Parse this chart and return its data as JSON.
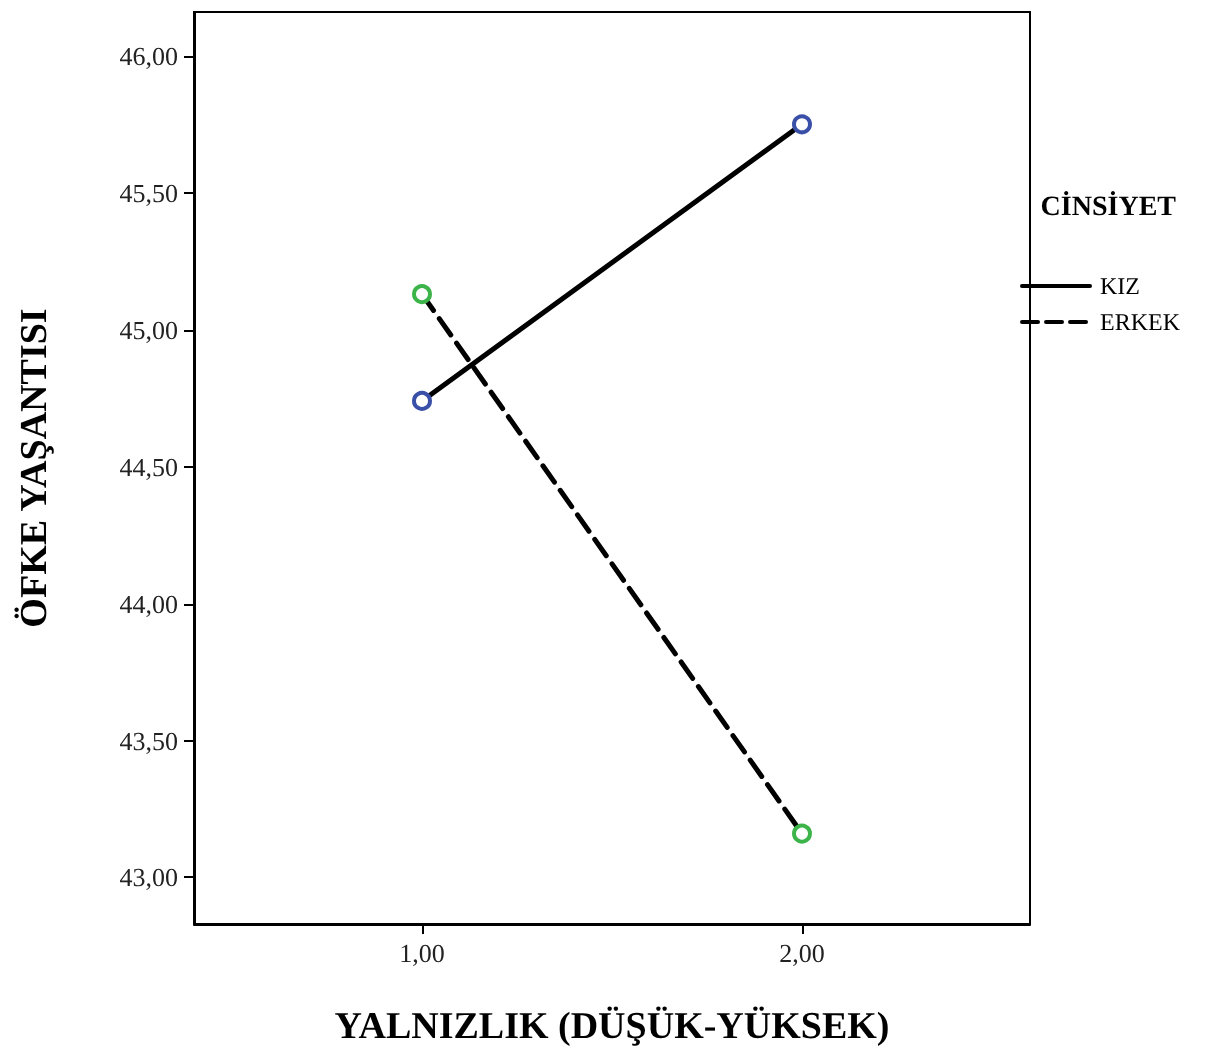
{
  "chart_data": {
    "type": "line",
    "xlabel": "YALNIZLIK (DÜŞÜK-YÜKSEK)",
    "ylabel": "ÖFKE YAŞANTISI",
    "legend_title": "CİNSİYET",
    "legend": "right",
    "grid": false,
    "marker": "circle",
    "x": [
      1,
      2
    ],
    "xlim": [
      0.4,
      2.6
    ],
    "xticks": [
      {
        "value": 1,
        "label": "1,00"
      },
      {
        "value": 2,
        "label": "2,00"
      }
    ],
    "ylim": [
      42.83,
      46.16
    ],
    "yticks": [
      {
        "value": 43,
        "label": "43,00"
      },
      {
        "value": 43.5,
        "label": "43,50"
      },
      {
        "value": 44,
        "label": "44,00"
      },
      {
        "value": 44.5,
        "label": "44,50"
      },
      {
        "value": 45,
        "label": "45,00"
      },
      {
        "value": 45.5,
        "label": "45,50"
      },
      {
        "value": 46,
        "label": "46,00"
      }
    ],
    "series": [
      {
        "name": "KIZ",
        "color": "#000000",
        "colors": [
          "#3a50a8",
          "#3a50a8"
        ],
        "line_style": "solid",
        "values": [
          44.74,
          45.75
        ]
      },
      {
        "name": "ERKEK",
        "color": "#000000",
        "colors": [
          "#3cb44a",
          "#3cb44a"
        ],
        "line_style": "dashed",
        "values": [
          45.13,
          43.16
        ]
      }
    ]
  }
}
